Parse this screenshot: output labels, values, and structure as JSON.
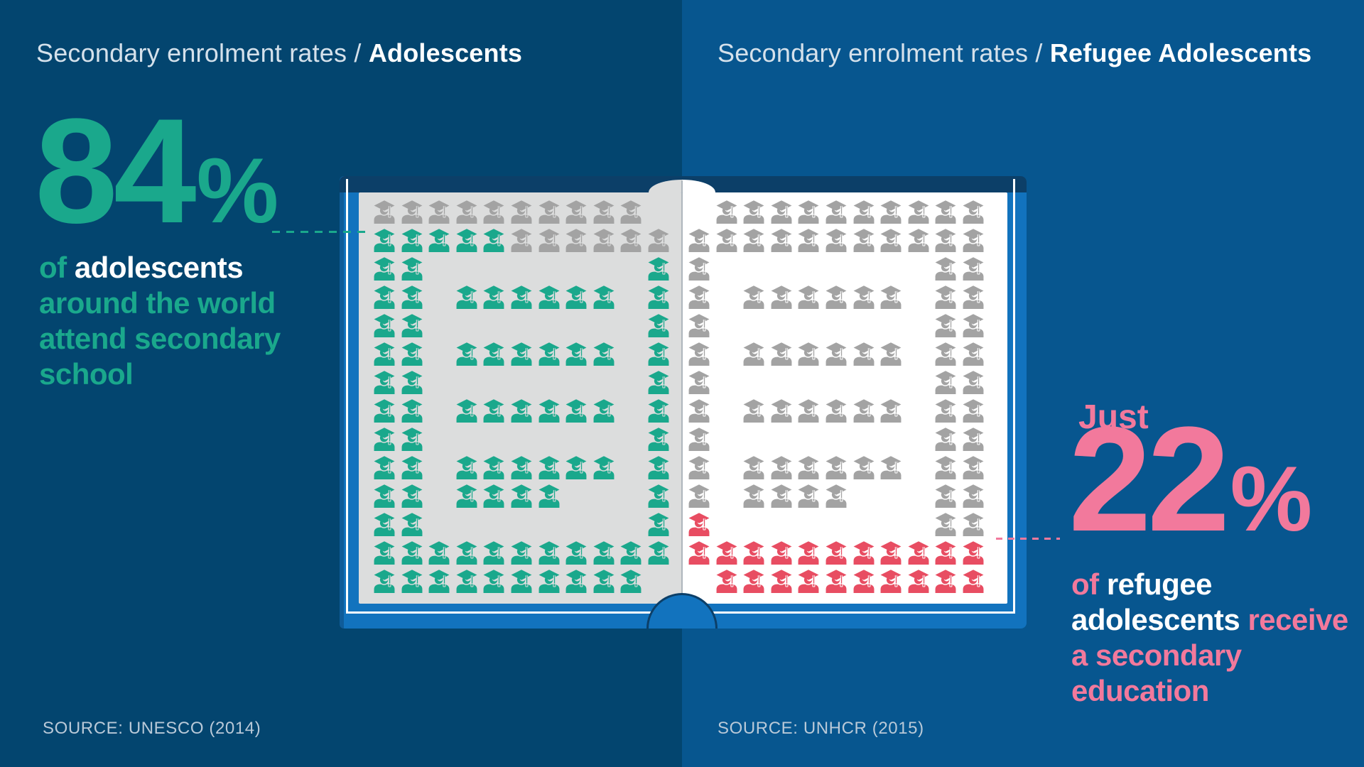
{
  "header": {
    "left_title_prefix": "Secondary enrolment rates / ",
    "left_title_bold": "Adolescents",
    "right_title_prefix": "Secondary enrolment rates / ",
    "right_title_bold": "Refugee Adolescents"
  },
  "left_stat": {
    "number": "84",
    "percent_sign": "%",
    "desc_line1_accent": "of ",
    "desc_line1_emph": "adolescents",
    "desc_line2": "around the world",
    "desc_line3": "attend secondary",
    "desc_line4": "school",
    "source": "SOURCE: UNESCO (2014)"
  },
  "right_stat": {
    "lead_in": "Just",
    "number": "22",
    "percent_sign": "%",
    "desc_line1_accent": "of ",
    "desc_line1_emph": "refugee",
    "desc_line2_emph": "adolescents",
    "desc_line2_accent": " receive",
    "desc_line3": "a secondary",
    "desc_line4": "education",
    "source": "SOURCE: UNHCR (2015)"
  },
  "colors": {
    "background_left": "#03456F",
    "background_right": "#07568F",
    "teal_accent": "#1AA88C",
    "pink_accent": "#F2799C",
    "red_icon": "#E84D62",
    "gray_icon": "#A3A3A3",
    "page_left_gray": "#DCDDDD",
    "page_right_white": "#FFFFFF",
    "cover_blue": "#1273BE",
    "cover_dark_navy": "#0C3F68"
  },
  "chart_data": {
    "type": "pictograph",
    "unit": "1 graduate icon = 1 percentage point (100 icons per page)",
    "icon_legend": {
      "G": "adolescent attending secondary school (teal)",
      "g": "not attending (gray)",
      "r": "refugee adolescent receiving secondary education (red)",
      ".": "empty cell"
    },
    "icon_colors": {
      "G": "#1AA88C",
      "g": "#A3A3A3",
      "r": "#E84D62"
    },
    "charts": [
      {
        "page_name": "page-adolescents",
        "group": "Adolescents",
        "value_pct": 84,
        "total_icons": 100,
        "filled_icons": 84,
        "unfilled_icons": 16,
        "filled_color": "#1AA88C",
        "unfilled_color": "#A3A3A3",
        "page_color": "#DCDDDD",
        "source": "SOURCE: UNESCO (2014)",
        "grid": [
          "gggggggggg.",
          "GGGGGgggggg",
          "GG........G",
          "GG.GGGGGG.G",
          "GG........G",
          "GG.GGGGGG.G",
          "GG........G",
          "GG.GGGGGG.G",
          "GG........G",
          "GG.GGGGGG.G",
          "GG.GGGG...G",
          "GG........G",
          "GGGGGGGGGGG",
          "GGGGGGGGGG."
        ]
      },
      {
        "page_name": "page-refugees",
        "group": "Refugee Adolescents",
        "value_pct": 22,
        "total_icons": 100,
        "filled_icons": 22,
        "unfilled_icons": 78,
        "filled_color": "#E84D62",
        "unfilled_color": "#A3A3A3",
        "page_color": "#FFFFFF",
        "source": "SOURCE: UNHCR (2015)",
        "grid": [
          ".gggggggggg",
          "ggggggggggg",
          "g........gg",
          "g.gggggg.gg",
          "g........gg",
          "g.gggggg.gg",
          "g........gg",
          "g.gggggg.gg",
          "g........gg",
          "g.gggggg.gg",
          "g.gggg...gg",
          "r........gg",
          "rrrrrrrrrrr",
          ".rrrrrrrrrr"
        ]
      }
    ]
  }
}
